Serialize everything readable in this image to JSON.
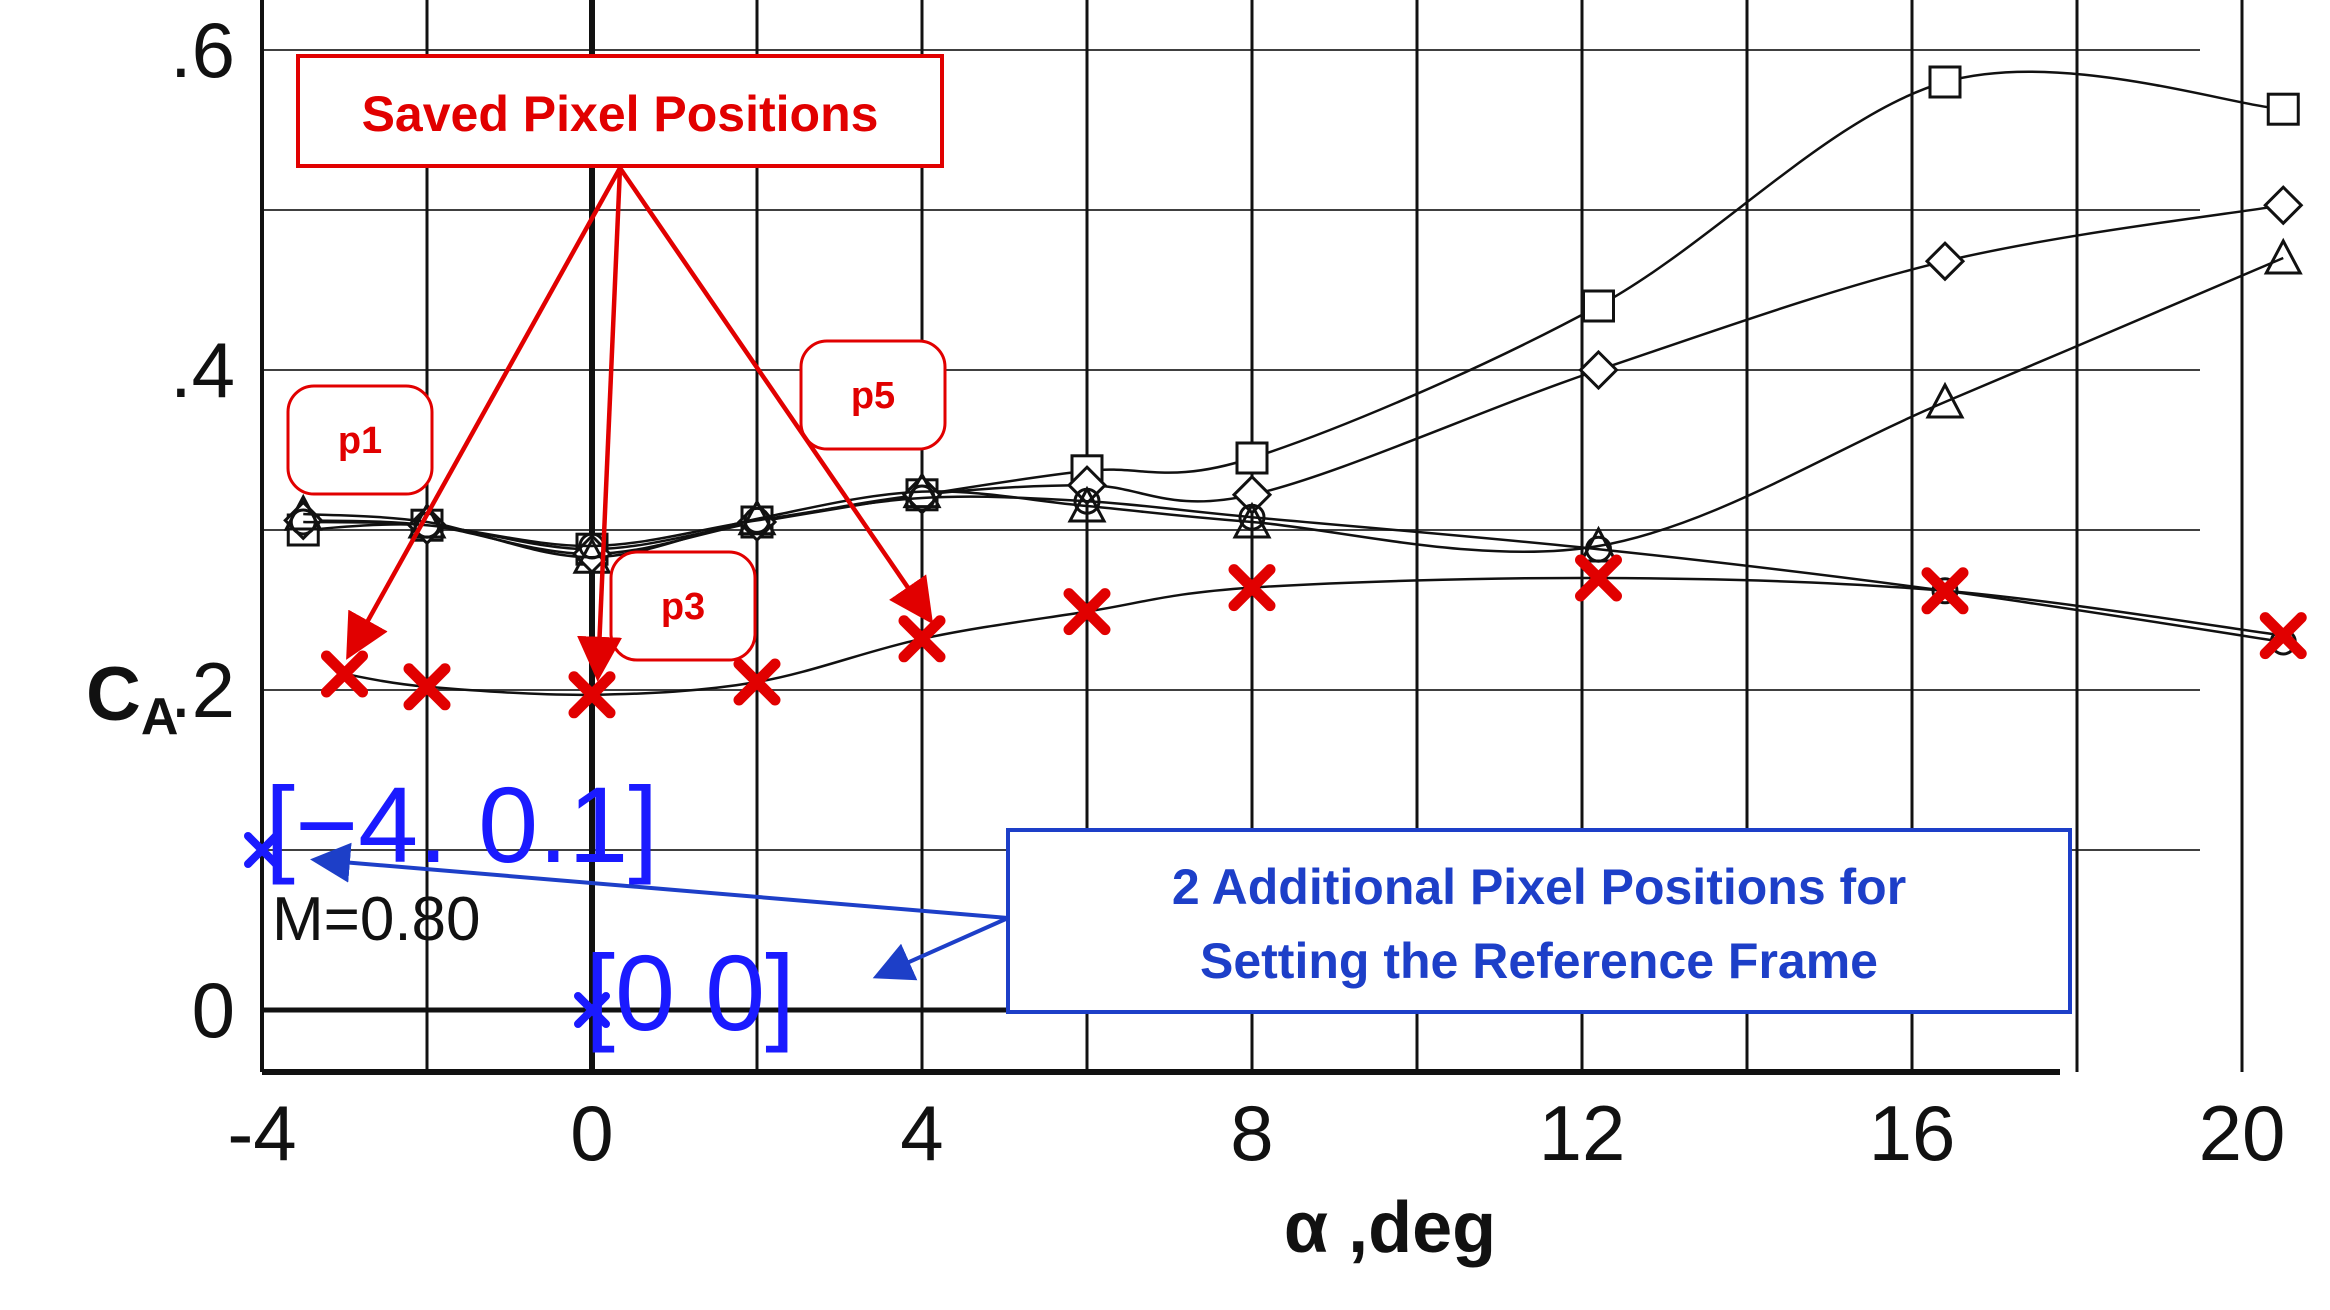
{
  "chart_data": {
    "type": "line",
    "title": "",
    "xlabel": "α ,deg",
    "ylabel": "C",
    "ylabel_sub": "A",
    "xlim": [
      -4,
      21
    ],
    "ylim": [
      -0.04,
      0.66
    ],
    "x_ticks": [
      {
        "value": -4,
        "label": "-4"
      },
      {
        "value": 0,
        "label": "0"
      },
      {
        "value": 4,
        "label": "4"
      },
      {
        "value": 8,
        "label": "8"
      },
      {
        "value": 12,
        "label": "12"
      },
      {
        "value": 16,
        "label": "16"
      },
      {
        "value": 20,
        "label": "20"
      }
    ],
    "y_ticks": [
      {
        "value": 0,
        "label": "0"
      },
      {
        "value": 0.2,
        "label": ".2"
      },
      {
        "value": 0.4,
        "label": ".4"
      },
      {
        "value": 0.6,
        "label": ".6"
      }
    ],
    "grid": true,
    "annotation_text": "M=0.80",
    "series": [
      {
        "marker": "square",
        "x": [
          -3.5,
          -2,
          0,
          2,
          4,
          6,
          8,
          12.2,
          16.4,
          20.5
        ],
        "y": [
          0.3,
          0.303,
          0.288,
          0.305,
          0.322,
          0.337,
          0.345,
          0.44,
          0.58,
          0.563
        ]
      },
      {
        "marker": "diamond",
        "x": [
          -3.5,
          -2,
          0,
          2,
          4,
          6,
          8,
          12.2,
          16.4,
          20.5
        ],
        "y": [
          0.306,
          0.303,
          0.285,
          0.305,
          0.322,
          0.328,
          0.322,
          0.4,
          0.468,
          0.503
        ]
      },
      {
        "marker": "triangle",
        "x": [
          -3.5,
          -2,
          0,
          2,
          4,
          6,
          8,
          12.2,
          16.4,
          20.5
        ],
        "y": [
          0.31,
          0.305,
          0.283,
          0.307,
          0.324,
          0.315,
          0.305,
          0.29,
          0.38,
          0.47
        ]
      },
      {
        "marker": "circle",
        "x": [
          -3.5,
          -2,
          0,
          2,
          4,
          6,
          8,
          12.2,
          16.4,
          20.5
        ],
        "y": [
          0.305,
          0.303,
          0.29,
          0.306,
          0.32,
          0.318,
          0.308,
          0.288,
          0.262,
          0.23
        ]
      },
      {
        "marker": "plain",
        "x": [
          -3.0,
          -2,
          0,
          2,
          4,
          6,
          8,
          12.2,
          16.4,
          20.5
        ],
        "y": [
          0.21,
          0.202,
          0.197,
          0.205,
          0.232,
          0.249,
          0.264,
          0.27,
          0.262,
          0.234
        ]
      }
    ],
    "saved_points": {
      "marker": "red-x",
      "x": [
        -3.0,
        -2,
        0,
        2,
        4,
        6,
        8,
        12.2,
        16.4,
        20.5
      ],
      "y": [
        0.21,
        0.202,
        0.197,
        0.205,
        0.232,
        0.249,
        0.264,
        0.27,
        0.262,
        0.234
      ]
    },
    "reference_points": {
      "marker": "blue-x",
      "x": [
        -4,
        0
      ],
      "y": [
        0.1,
        0
      ]
    }
  },
  "annotations": {
    "saved_title": "Saved Pixel Positions",
    "point_labels": [
      {
        "label": "p1",
        "target": 0
      },
      {
        "label": "p3",
        "target": 2
      },
      {
        "label": "p5",
        "target": 4
      }
    ],
    "ref_title_line1": "2 Additional Pixel Positions for",
    "ref_title_line2": "Setting the Reference Frame",
    "ref_label_1": "[−4.   0.1]",
    "ref_label_2": "[0  0]"
  },
  "colors": {
    "red": "#e10000",
    "blue": "#1a1aff",
    "box_blue": "#1d3fc8",
    "ink": "#111111"
  }
}
